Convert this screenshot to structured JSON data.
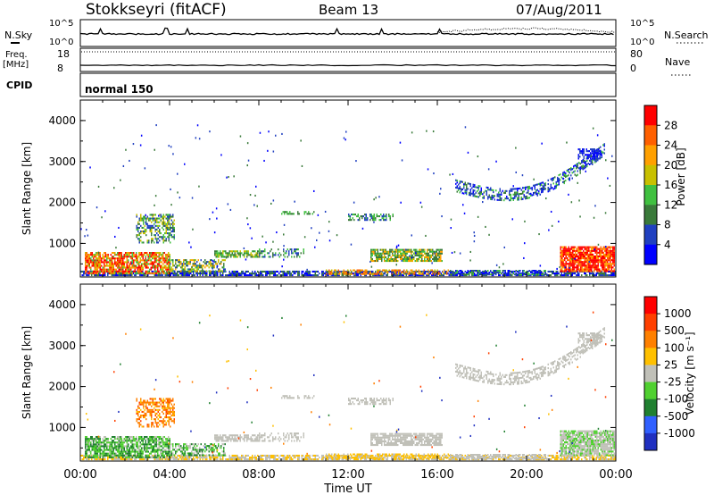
{
  "header": {
    "station": "Stokkseyri (fitACF)",
    "beam": "Beam 13",
    "date": "07/Aug/2011"
  },
  "strip": {
    "nsky_label": "N.Sky",
    "nsky_ticks": [
      "10^5",
      "10^0"
    ],
    "nsearch_label": "N.Search",
    "nsearch_ticks": [
      "10^5",
      "10^0"
    ],
    "freq_label": "Freq.",
    "freq_unit": "[MHz]",
    "freq_ticks": [
      "18",
      "8"
    ],
    "nave_label": "Nave",
    "nave_ticks": [
      "80",
      "0"
    ],
    "cpid_label": "CPID",
    "cpid_value": "normal 150"
  },
  "chart_data": [
    {
      "type": "heatmap",
      "name": "power",
      "ylabel": "Slant Range [km]",
      "xlabel": "",
      "ylim": [
        180,
        4500
      ],
      "yticks": [
        "1000",
        "2000",
        "3000",
        "4000"
      ],
      "xticks": [
        "00:00",
        "04:00",
        "08:00",
        "12:00",
        "16:00",
        "20:00",
        "00:00"
      ],
      "colorbar_label": "Power [dB]",
      "colorbar_ticks": [
        "28",
        "24",
        "20",
        "16",
        "12",
        "8",
        "4"
      ],
      "colors": [
        "#0000ff",
        "#2040c0",
        "#3a7a3a",
        "#40c040",
        "#c8c000",
        "#ffa000",
        "#ff6000",
        "#ff0000"
      ]
    },
    {
      "type": "heatmap",
      "name": "velocity",
      "ylabel": "Slant Range [km]",
      "xlabel": "Time UT",
      "ylim": [
        180,
        4500
      ],
      "yticks": [
        "1000",
        "2000",
        "3000",
        "4000"
      ],
      "xticks": [
        "00:00",
        "04:00",
        "08:00",
        "12:00",
        "16:00",
        "20:00",
        "00:00"
      ],
      "colorbar_label": "Velocity [m s⁻¹]",
      "colorbar_ticks": [
        "1000",
        "500",
        "100",
        "25",
        "-25",
        "-100",
        "-500",
        "-1000"
      ],
      "colors": [
        "#2030c0",
        "#3060ff",
        "#208030",
        "#50d030",
        "#c0c0b8",
        "#ffc000",
        "#ff8000",
        "#ff4000",
        "#ff0000"
      ]
    }
  ]
}
